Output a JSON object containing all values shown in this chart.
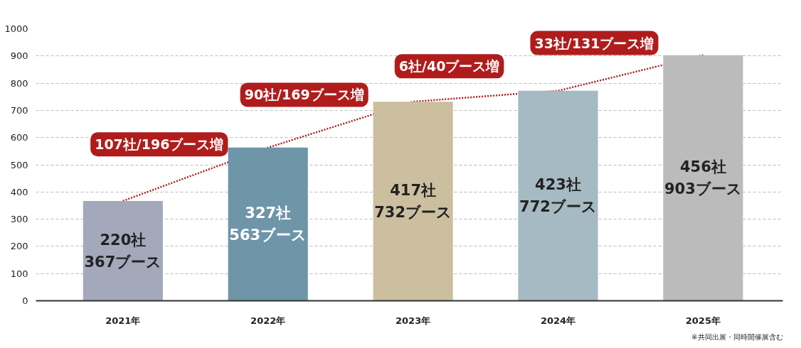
{
  "chart_data": {
    "type": "bar",
    "categories": [
      "2021年",
      "2022年",
      "2023年",
      "2024年",
      "2025年"
    ],
    "series": [
      {
        "values": [
          367,
          563,
          732,
          772,
          903
        ],
        "colors": [
          "#a3a9bb",
          "#6e95a8",
          "#cbbfa0",
          "#a5bac3",
          "#bbbbbb"
        ],
        "value_labels": [
          "220社\n367ブース",
          "327社\n563ブース",
          "417社\n732ブース",
          "423社\n772ブース",
          "456社\n903ブース"
        ]
      },
      {
        "type": "line",
        "values": [
          367,
          563,
          732,
          772,
          903
        ],
        "color": "#b01c1c",
        "line_style": "dotted"
      }
    ],
    "ylim": [
      0,
      1000
    ],
    "yticks": [
      0,
      100,
      200,
      300,
      400,
      500,
      600,
      700,
      800,
      900,
      1000
    ],
    "grid": "y",
    "annotations": [
      "107社/196ブース増",
      "90社/169ブース増",
      "6社/40ブース増",
      "33社/131ブース増",
      "※共同出展・同時開催展含む"
    ]
  }
}
